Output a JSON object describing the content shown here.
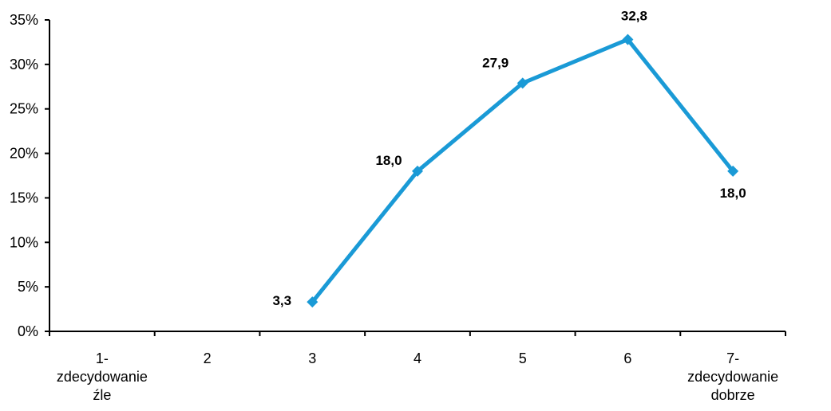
{
  "chart_data": {
    "type": "line",
    "title": "",
    "xlabel": "",
    "ylabel": "",
    "categories": [
      [
        "1-",
        "zdecydowanie",
        "źle"
      ],
      [
        "2"
      ],
      [
        "3"
      ],
      [
        "4"
      ],
      [
        "5"
      ],
      [
        "6"
      ],
      [
        "7-",
        "zdecydowanie",
        "dobrze"
      ]
    ],
    "ylim": [
      0,
      35
    ],
    "yticks": [
      0,
      5,
      10,
      15,
      20,
      25,
      30,
      35
    ],
    "ytick_labels": [
      "0%",
      "5%",
      "10%",
      "15%",
      "20%",
      "25%",
      "30%",
      "35%"
    ],
    "grid": false,
    "legend": "none",
    "series": [
      {
        "values": [
          null,
          null,
          3.3,
          18.0,
          27.9,
          32.8,
          18.0
        ],
        "data_labels": [
          null,
          null,
          "3,3",
          "18,0",
          "27,9",
          "32,8",
          "18,0"
        ],
        "color": "#1a9ad6"
      }
    ]
  }
}
